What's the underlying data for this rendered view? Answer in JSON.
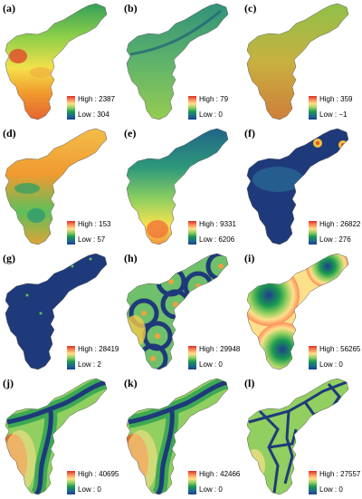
{
  "figure": {
    "panels": [
      {
        "label": "(a)",
        "high": "High : 2387",
        "low": "Low : 304",
        "ramp": "rainbow",
        "fill": "elevation"
      },
      {
        "label": "(b)",
        "high": "High : 79",
        "low": "Low : 0",
        "ramp": "rainbow",
        "fill": "slope"
      },
      {
        "label": "(c)",
        "high": "High : 359",
        "low": "Low : −1",
        "ramp": "rainbow",
        "fill": "aspect"
      },
      {
        "label": "(d)",
        "high": "High : 153",
        "low": "Low : 57",
        "ramp": "rainbow",
        "fill": "orange-patches"
      },
      {
        "label": "(e)",
        "high": "High : 9331",
        "low": "Low : 6206",
        "ramp": "rainbow",
        "fill": "teal-gradient"
      },
      {
        "label": "(f)",
        "high": "High : 26822",
        "low": "Low : 276",
        "ramp": "rainbow",
        "fill": "dark-blue"
      },
      {
        "label": "(g)",
        "high": "High : 28419",
        "low": "Low : 2",
        "ramp": "rainbow",
        "fill": "dark-blue-specks"
      },
      {
        "label": "(h)",
        "high": "High : 29948",
        "low": "Low : 0",
        "ramp": "rainbow",
        "fill": "distance-points"
      },
      {
        "label": "(i)",
        "high": "High : 56265",
        "low": "Low : 0",
        "ramp": "rainbow",
        "fill": "distance-large"
      },
      {
        "label": "(j)",
        "high": "High : 40695",
        "low": "Low : 0",
        "ramp": "rainbow",
        "fill": "distance-river"
      },
      {
        "label": "(k)",
        "high": "High : 42466",
        "low": "Low : 0",
        "ramp": "rainbow",
        "fill": "distance-river"
      },
      {
        "label": "(l)",
        "high": "High : 27557",
        "low": "Low : 0",
        "ramp": "rainbow",
        "fill": "distance-roads"
      }
    ],
    "colors": {
      "ramp": [
        "#d73027",
        "#fc8d59",
        "#fee08b",
        "#91cf60",
        "#1a9850",
        "#1d6e8a",
        "#1f3f8f"
      ],
      "dark_blue": "#1f3a7a",
      "line": "#1e3a7a"
    }
  }
}
